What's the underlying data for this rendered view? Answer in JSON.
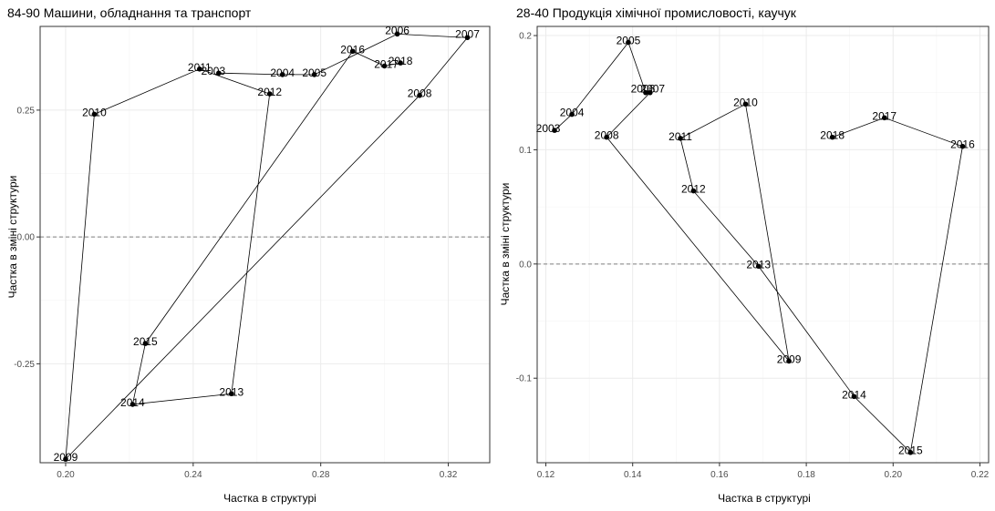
{
  "chart_data": [
    {
      "type": "scatter",
      "connected": true,
      "title": "84-90 Машини, обладнання та транспорт",
      "xlabel": "Частка в структурі",
      "ylabel": "Частка в зміні структури",
      "xlim": [
        0.192,
        0.333
      ],
      "ylim": [
        -0.445,
        0.415
      ],
      "xticks": [
        0.2,
        0.24,
        0.28,
        0.32
      ],
      "xtick_labels": [
        "0.20",
        "0.24",
        "0.28",
        "0.32"
      ],
      "yticks": [
        -0.25,
        0.0,
        0.25
      ],
      "ytick_labels": [
        "-0.25",
        "0.00",
        "0.25"
      ],
      "reference_line_y": 0,
      "grid": true,
      "points": [
        {
          "label": "2003",
          "x": 0.248,
          "y": 0.323
        },
        {
          "label": "2004",
          "x": 0.268,
          "y": 0.32
        },
        {
          "label": "2005",
          "x": 0.278,
          "y": 0.32
        },
        {
          "label": "2006",
          "x": 0.304,
          "y": 0.4
        },
        {
          "label": "2007",
          "x": 0.326,
          "y": 0.393
        },
        {
          "label": "2008",
          "x": 0.311,
          "y": 0.279
        },
        {
          "label": "2009",
          "x": 0.2,
          "y": -0.438
        },
        {
          "label": "2010",
          "x": 0.209,
          "y": 0.242
        },
        {
          "label": "2011",
          "x": 0.242,
          "y": 0.331
        },
        {
          "label": "2012",
          "x": 0.264,
          "y": 0.282
        },
        {
          "label": "2013",
          "x": 0.252,
          "y": -0.309
        },
        {
          "label": "2014",
          "x": 0.221,
          "y": -0.33
        },
        {
          "label": "2015",
          "x": 0.225,
          "y": -0.21
        },
        {
          "label": "2016",
          "x": 0.29,
          "y": 0.366
        },
        {
          "label": "2017",
          "x": 0.3,
          "y": 0.337
        },
        {
          "label": "2018",
          "x": 0.305,
          "y": 0.343
        }
      ]
    },
    {
      "type": "scatter",
      "connected": true,
      "title": "28-40 Продукція хімічної промисловості, каучук",
      "xlabel": "Частка в структурі",
      "ylabel": "Частка в зміні структури",
      "xlim": [
        0.118,
        0.222
      ],
      "ylim": [
        -0.174,
        0.208
      ],
      "xticks": [
        0.12,
        0.14,
        0.16,
        0.18,
        0.2,
        0.22
      ],
      "xtick_labels": [
        "0.12",
        "0.14",
        "0.16",
        "0.18",
        "0.20",
        "0.22"
      ],
      "yticks": [
        -0.1,
        0.0,
        0.1,
        0.2
      ],
      "ytick_labels": [
        "-0.1",
        "0.0",
        "0.1",
        "0.2"
      ],
      "reference_line_y": 0,
      "grid": true,
      "points": [
        {
          "label": "2003",
          "x": 0.122,
          "y": 0.117
        },
        {
          "label": "2004",
          "x": 0.126,
          "y": 0.131
        },
        {
          "label": "2005",
          "x": 0.139,
          "y": 0.194
        },
        {
          "label": "2006",
          "x": 0.143,
          "y": 0.15
        },
        {
          "label": "2007",
          "x": 0.144,
          "y": 0.15
        },
        {
          "label": "2008",
          "x": 0.134,
          "y": 0.111
        },
        {
          "label": "2009",
          "x": 0.176,
          "y": -0.085
        },
        {
          "label": "2010",
          "x": 0.166,
          "y": 0.14
        },
        {
          "label": "2011",
          "x": 0.151,
          "y": 0.11
        },
        {
          "label": "2012",
          "x": 0.154,
          "y": 0.064
        },
        {
          "label": "2013",
          "x": 0.169,
          "y": -0.002
        },
        {
          "label": "2014",
          "x": 0.191,
          "y": -0.116
        },
        {
          "label": "2015",
          "x": 0.204,
          "y": -0.165
        },
        {
          "label": "2016",
          "x": 0.216,
          "y": 0.103
        },
        {
          "label": "2017",
          "x": 0.198,
          "y": 0.128
        },
        {
          "label": "2018",
          "x": 0.186,
          "y": 0.111
        }
      ]
    }
  ]
}
